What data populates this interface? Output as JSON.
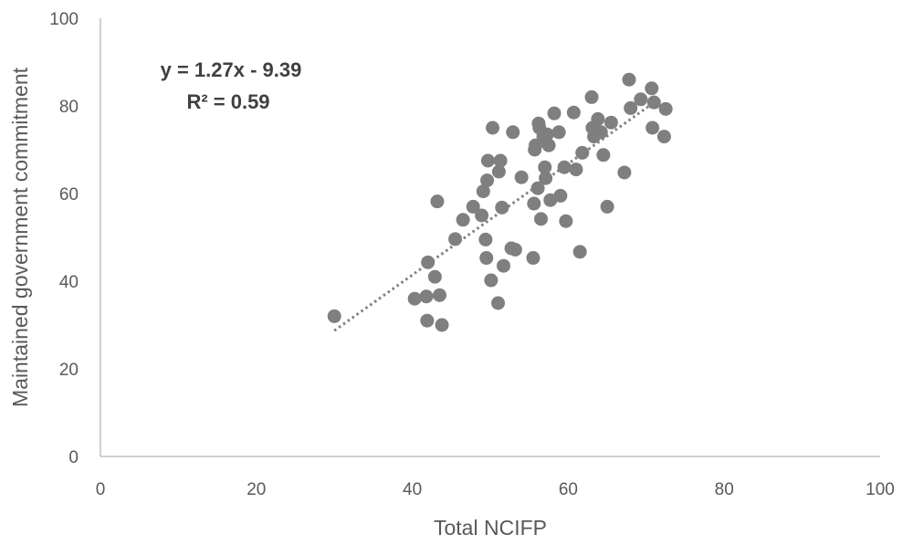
{
  "chart_data": {
    "type": "scatter",
    "xlabel": "Total NCIFP",
    "ylabel": "Maintained government commitment",
    "xlim": [
      0,
      100
    ],
    "ylim": [
      0,
      100
    ],
    "xticks": [
      "0",
      "20",
      "40",
      "60",
      "80",
      "100"
    ],
    "yticks": [
      "0",
      "20",
      "40",
      "60",
      "80",
      "100"
    ],
    "grid": false,
    "legend": "none",
    "point_color": "#7f7f7f",
    "trendline": {
      "style": "dotted",
      "slope": 1.27,
      "intercept": -9.39,
      "x_range": [
        30,
        71
      ],
      "equation": "y = 1.27x - 9.39",
      "r_squared": "R² = 0.59"
    },
    "series": [
      {
        "points": [
          [
            30,
            32
          ],
          [
            40.3,
            36
          ],
          [
            41.8,
            36.5
          ],
          [
            41.9,
            31
          ],
          [
            42,
            44.3
          ],
          [
            42.9,
            41
          ],
          [
            43.2,
            58.2
          ],
          [
            43.5,
            36.8
          ],
          [
            43.8,
            30
          ],
          [
            45.5,
            49.6
          ],
          [
            46.5,
            54
          ],
          [
            47.8,
            57
          ],
          [
            48.9,
            55
          ],
          [
            49.1,
            60.5
          ],
          [
            49.4,
            49.5
          ],
          [
            49.5,
            45.3
          ],
          [
            49.6,
            63
          ],
          [
            49.7,
            67.5
          ],
          [
            50.1,
            40.2
          ],
          [
            50.3,
            75
          ],
          [
            51,
            35
          ],
          [
            51.1,
            65
          ],
          [
            51.3,
            67.5
          ],
          [
            51.5,
            56.8
          ],
          [
            51.7,
            43.5
          ],
          [
            52.7,
            47.5
          ],
          [
            52.9,
            74
          ],
          [
            53.2,
            47.2
          ],
          [
            54,
            63.7
          ],
          [
            55.5,
            45.3
          ],
          [
            55.6,
            57.7
          ],
          [
            55.7,
            70
          ],
          [
            55.8,
            71
          ],
          [
            56.1,
            61.2
          ],
          [
            56.2,
            76
          ],
          [
            56.3,
            75
          ],
          [
            56.5,
            54.2
          ],
          [
            56.8,
            73
          ],
          [
            57,
            66
          ],
          [
            57.1,
            63.5
          ],
          [
            57.3,
            73.5
          ],
          [
            57.5,
            71
          ],
          [
            57.7,
            58.5
          ],
          [
            58.2,
            78.3
          ],
          [
            58.8,
            74
          ],
          [
            59,
            59.5
          ],
          [
            59.5,
            66
          ],
          [
            59.7,
            53.7
          ],
          [
            60.7,
            78.5
          ],
          [
            61,
            65.5
          ],
          [
            61.5,
            46.7
          ],
          [
            61.8,
            69.3
          ],
          [
            63,
            82
          ],
          [
            63.1,
            75
          ],
          [
            63.3,
            73
          ],
          [
            63.8,
            77
          ],
          [
            64.2,
            74
          ],
          [
            64.5,
            68.8
          ],
          [
            65,
            57
          ],
          [
            65.5,
            76.2
          ],
          [
            67.2,
            64.8
          ],
          [
            67.8,
            86
          ],
          [
            68,
            79.5
          ],
          [
            69.3,
            81.5
          ],
          [
            70.7,
            84
          ],
          [
            70.8,
            75
          ],
          [
            71,
            80.8
          ],
          [
            72.3,
            73
          ],
          [
            72.5,
            79.3
          ]
        ]
      }
    ]
  }
}
